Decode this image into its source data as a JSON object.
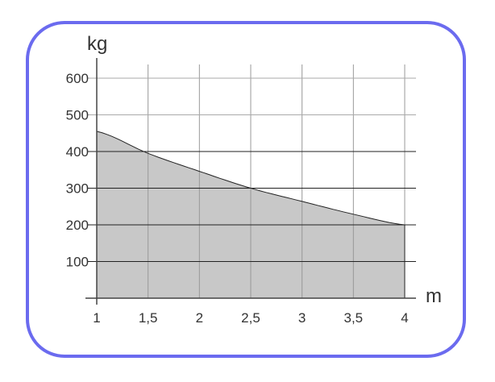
{
  "chart_data": {
    "type": "area",
    "xlabel": "m",
    "ylabel": "kg",
    "xlim": [
      1,
      4
    ],
    "ylim": [
      0,
      600
    ],
    "x_ticks": [
      1,
      1.5,
      2,
      2.5,
      3,
      3.5,
      4
    ],
    "x_tick_labels": [
      "1",
      "1,5",
      "2",
      "2,5",
      "3",
      "3,5",
      "4"
    ],
    "y_ticks": [
      100,
      200,
      300,
      400,
      500,
      600
    ],
    "y_tick_labels": [
      "100",
      "200",
      "300",
      "400",
      "500",
      "600"
    ],
    "grid": true,
    "x": [
      1,
      1.5,
      2,
      2.5,
      3,
      3.5,
      4
    ],
    "y": [
      455,
      395,
      346,
      300,
      264,
      229,
      200
    ],
    "fill_color": "#c8c8c8",
    "border_color": "#6b6bef"
  }
}
